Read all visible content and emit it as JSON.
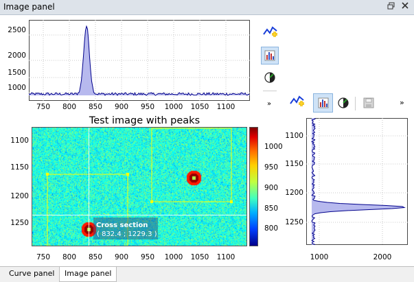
{
  "window": {
    "title": "Image panel",
    "restore_icon": "restore-window-icon",
    "close_icon": "close-icon"
  },
  "top_plot": {
    "y_ticks": [
      "2500",
      "2000",
      "1500",
      "1000"
    ],
    "x_ticks": [
      "750",
      "800",
      "850",
      "900",
      "950",
      "1000",
      "1050",
      "1100"
    ]
  },
  "image_plot": {
    "title": "Test image with peaks",
    "y_ticks": [
      "1100",
      "1150",
      "1200",
      "1250"
    ],
    "x_ticks": [
      "750",
      "800",
      "850",
      "900",
      "950",
      "1000",
      "1050",
      "1100"
    ],
    "colorbar_ticks": [
      "1000",
      "950",
      "900",
      "850",
      "800"
    ],
    "annotation_title": "Cross section",
    "annotation_value": "( 832.4 ; 1229.3 )"
  },
  "right_plot": {
    "y_ticks": [
      "1100",
      "1150",
      "1200",
      "1250"
    ],
    "x_ticks": [
      "1000",
      "2000"
    ]
  },
  "toolbar_vertical": {
    "icons": [
      "curve-plus-icon",
      "histogram-icon",
      "contrast-icon"
    ],
    "overflow": "»"
  },
  "toolbar_horizontal": {
    "icons": [
      "curve-plus-icon",
      "histogram-icon",
      "contrast-icon",
      "save-icon"
    ],
    "overflow": "»"
  },
  "tabs": [
    {
      "label": "Curve panel",
      "active": false
    },
    {
      "label": "Image panel",
      "active": true
    }
  ],
  "colors": {
    "curve": "#00008b",
    "curve_fill": "#b7b9ee",
    "selection": "#ffff00",
    "grid": "#c8c8c8"
  }
}
